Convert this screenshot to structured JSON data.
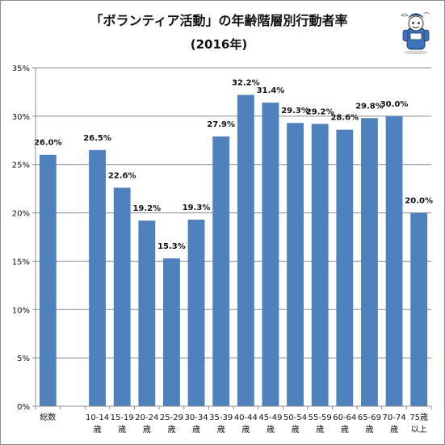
{
  "chart_data": {
    "type": "bar",
    "title": "「ボランティア活動」の年齢階層別行動者率",
    "subtitle": "(2016年)",
    "categories": [
      [
        "総数"
      ],
      [
        ""
      ],
      [
        "10-14",
        "歳"
      ],
      [
        "15-19",
        "歳"
      ],
      [
        "20-24",
        "歳"
      ],
      [
        "25-29",
        "歳"
      ],
      [
        "30-34",
        "歳"
      ],
      [
        "35-39",
        "歳"
      ],
      [
        "40-44",
        "歳"
      ],
      [
        "45-49",
        "歳"
      ],
      [
        "50-54",
        "歳"
      ],
      [
        "55-59",
        "歳"
      ],
      [
        "60-64",
        "歳"
      ],
      [
        "65-69",
        "歳"
      ],
      [
        "70-74",
        "歳"
      ],
      [
        "75歳",
        "以上"
      ]
    ],
    "values": [
      26.0,
      null,
      26.5,
      22.6,
      19.2,
      15.3,
      19.3,
      27.9,
      32.2,
      31.4,
      29.3,
      29.2,
      28.6,
      29.8,
      30.0,
      20.0
    ],
    "data_labels": [
      "26.0%",
      "",
      "26.5%",
      "22.6%",
      "19.2%",
      "15.3%",
      "19.3%",
      "27.9%",
      "32.2%",
      "31.4%",
      "29.3%",
      "29.2%",
      "28.6%",
      "29.8%",
      "30.0%",
      "20.0%"
    ],
    "ylim": [
      0,
      35
    ],
    "yticks": [
      0,
      5,
      10,
      15,
      20,
      25,
      30,
      35
    ],
    "ytick_labels": [
      "0%",
      "5%",
      "10%",
      "15%",
      "20%",
      "25%",
      "30%",
      "35%"
    ],
    "xlabel": "",
    "ylabel": "",
    "grid": true,
    "legend": "none",
    "bar_color": "#4f81bd",
    "mascot_icon": "mascot-character-icon"
  }
}
